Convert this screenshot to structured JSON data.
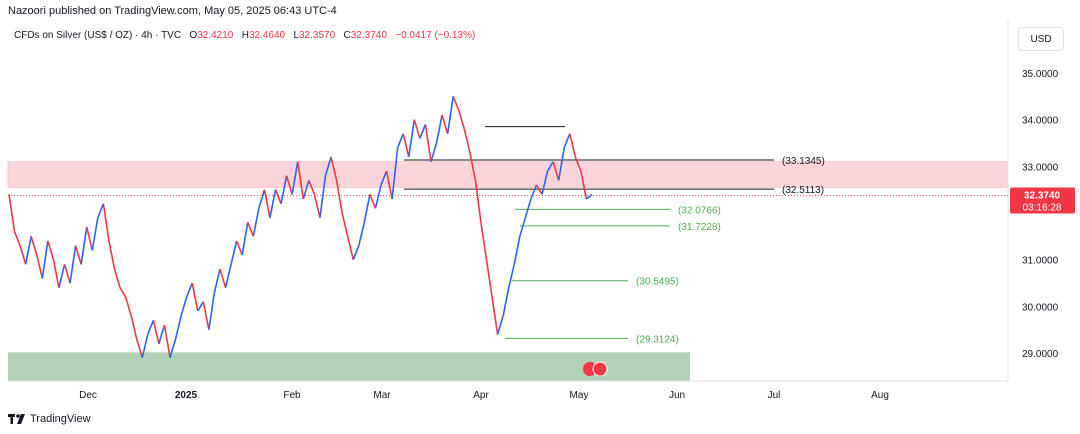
{
  "publisher": "Nazoori published on TradingView.com, May 05, 2025 06:43 UTC-4",
  "legend": {
    "symbol": "CFDs on Silver (US$ / OZ) · 4h · TVC",
    "o_label": "O",
    "o": "32.4210",
    "h_label": "H",
    "h": "32.4640",
    "l_label": "L",
    "l": "32.3570",
    "c_label": "C",
    "c": "32.3740",
    "change": "−0.0417 (−0.13%)"
  },
  "currency": "USD",
  "price_badge": {
    "value": "32.3740",
    "countdown": "03:16:28"
  },
  "footer_brand": "TradingView",
  "colors": {
    "up": "#2962ff",
    "down": "#f23645",
    "supply_zone": "#fbd5d9",
    "demand_zone": "#a5c9a9",
    "green_level": "#4caf50",
    "black_level": "#131722"
  },
  "chart_data": {
    "type": "line",
    "title": "CFDs on Silver (US$ / OZ) · 4h · TVC",
    "xlabel": "",
    "ylabel": "",
    "ylim": [
      28.4,
      35.6
    ],
    "x_ticks": [
      "Dec",
      "2025",
      "Feb",
      "Mar",
      "Apr",
      "May",
      "Jun",
      "Jul",
      "Aug"
    ],
    "y_ticks": [
      "35.0000",
      "34.0000",
      "33.0000",
      "31.0000",
      "30.0000",
      "29.0000"
    ],
    "series": [
      {
        "values": [
          32.4,
          31.6,
          31.3,
          30.9,
          31.5,
          31.1,
          30.6,
          31.4,
          31.0,
          30.4,
          30.9,
          30.5,
          31.3,
          30.9,
          31.7,
          31.2,
          31.9,
          32.2,
          31.4,
          30.8,
          30.4,
          30.2,
          29.8,
          29.3,
          28.9,
          29.4,
          29.7,
          29.2,
          29.6,
          28.9,
          29.3,
          29.8,
          30.2,
          30.5,
          29.9,
          30.1,
          29.5,
          30.3,
          30.8,
          30.4,
          30.9,
          31.4,
          31.1,
          31.8,
          31.5,
          32.1,
          32.5,
          31.9,
          32.5,
          32.2,
          32.8,
          32.4,
          33.1,
          32.3,
          32.7,
          32.4,
          31.9,
          32.8,
          33.2,
          32.7,
          32.0,
          31.5,
          31.0,
          31.3,
          31.8,
          32.4,
          32.1,
          32.6,
          32.9,
          32.3,
          33.4,
          33.7,
          33.2,
          34.0,
          33.6,
          33.9,
          33.1,
          33.5,
          34.1,
          33.7,
          34.5,
          34.2,
          33.8,
          33.3,
          32.7,
          31.8,
          31.0,
          30.2,
          29.4,
          29.8,
          30.4,
          30.9,
          31.5,
          31.9,
          32.3,
          32.6,
          32.4,
          32.9,
          33.1,
          32.7,
          33.4,
          33.7,
          33.2,
          32.9,
          32.3,
          32.4
        ]
      }
    ],
    "levels": [
      {
        "label": "(33.1345)",
        "value": 33.1345,
        "kind": "black"
      },
      {
        "label": "(32.5113)",
        "value": 32.5113,
        "kind": "black"
      },
      {
        "label": "(32.0766)",
        "value": 32.0766,
        "kind": "green"
      },
      {
        "label": "(31.7228)",
        "value": 31.7228,
        "kind": "green"
      },
      {
        "label": "(30.5495)",
        "value": 30.5495,
        "kind": "green"
      },
      {
        "label": "(29.3124)",
        "value": 29.3124,
        "kind": "green"
      }
    ],
    "top_line_value": 33.85,
    "zones": [
      {
        "name": "supply",
        "from": 32.55,
        "to": 33.1
      },
      {
        "name": "demand",
        "from": 28.5,
        "to": 28.95
      }
    ],
    "last_value": 32.374
  }
}
